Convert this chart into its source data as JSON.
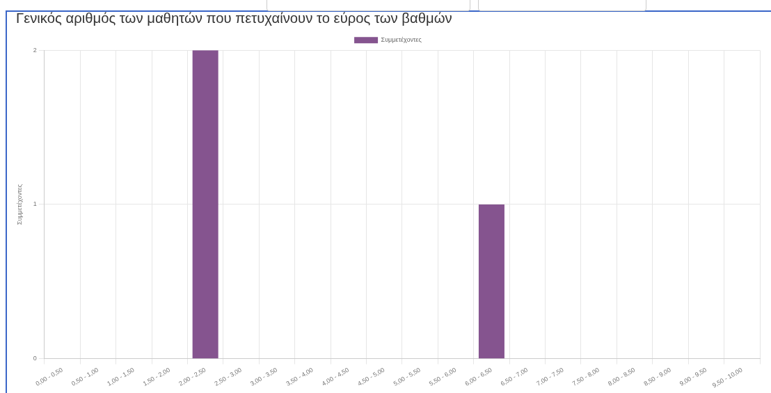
{
  "chart_data": {
    "type": "bar",
    "title": "Γενικός αριθμός των μαθητών που πετυχαίνουν το εύρος των βαθμών",
    "ylabel": "Συμμετέχοντες",
    "categories": [
      "0,00 - 0,50",
      "0,50 - 1,00",
      "1,00 - 1,50",
      "1,50 - 2,00",
      "2,00 - 2,50",
      "2,50 - 3,00",
      "3,00 - 3,50",
      "3,50 - 4,00",
      "4,00 - 4,50",
      "4,50 - 5,00",
      "5,00 - 5,50",
      "5,50 - 6,00",
      "6,00 - 6,50",
      "6,50 - 7,00",
      "7,00 - 7,50",
      "7,50 - 8,00",
      "8,00 - 8,50",
      "8,50 - 9,00",
      "9,00 - 9,50",
      "9,50 - 10,00"
    ],
    "series": [
      {
        "name": "Συμμετέχοντες",
        "color": "#85548f",
        "values": [
          0,
          0,
          0,
          0,
          2,
          0,
          0,
          0,
          0,
          0,
          0,
          0,
          1,
          0,
          0,
          0,
          0,
          0,
          0,
          0
        ]
      }
    ],
    "ylim": [
      0,
      2
    ],
    "yticks": [
      0,
      1,
      2
    ],
    "grid": true,
    "legend": "top"
  }
}
